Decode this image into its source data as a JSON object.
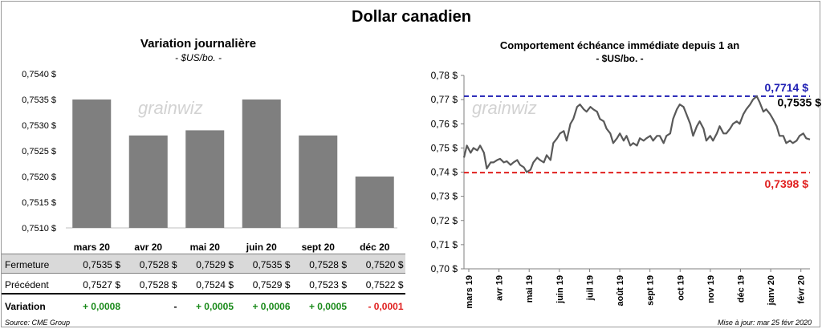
{
  "title": "Dollar canadien",
  "left": {
    "title": "Variation  journalière",
    "subtitle": "- $US/bo. -"
  },
  "right": {
    "title": "Comportement échéance immédiate depuis 1 an",
    "subtitle": "- $US/bo. -"
  },
  "watermark": "grainwiz",
  "table": {
    "row_labels": {
      "close": "Fermeture",
      "prev": "Précédent",
      "var": "Variation"
    },
    "close": [
      "0,7535  $",
      "0,7528  $",
      "0,7529  $",
      "0,7535  $",
      "0,7528  $",
      "0,7520  $"
    ],
    "prev": [
      "0,7527  $",
      "0,7528  $",
      "0,7524  $",
      "0,7529  $",
      "0,7523  $",
      "0,7522  $"
    ],
    "var": [
      "+ 0,0008",
      "-",
      "+ 0,0005",
      "+ 0,0006",
      "+ 0,0005",
      "- 0,0001"
    ],
    "var_sign": [
      "pos",
      "neu",
      "pos",
      "pos",
      "pos",
      "neg"
    ]
  },
  "footer": {
    "source": "Source: CME Group",
    "updated": "Mise à jour: mar 25 févr 2020"
  },
  "colors": {
    "bar": "#7f7f7f",
    "line": "#595959",
    "high": "#1f1fb4",
    "low": "#e0201f",
    "positive": "#1a8a1a",
    "negative": "#e0201f"
  },
  "chart_data": [
    {
      "type": "bar",
      "title": "Variation  journalière",
      "subtitle": "- $US/bo. -",
      "categories": [
        "mars 20",
        "avr 20",
        "mai 20",
        "juin 20",
        "sept 20",
        "déc 20"
      ],
      "values": [
        0.7535,
        0.7528,
        0.7529,
        0.7535,
        0.7528,
        0.752
      ],
      "ylim": [
        0.751,
        0.754
      ],
      "yticks": [
        "0,7510 $",
        "0,7515 $",
        "0,7520 $",
        "0,7525 $",
        "0,7530 $",
        "0,7535 $",
        "0,7540 $"
      ],
      "grid": false
    },
    {
      "type": "line",
      "title": "Comportement échéance immédiate depuis 1 an",
      "subtitle": "- $US/bo. -",
      "x_tick_labels": [
        "mars 19",
        "avr 19",
        "mai 19",
        "juin 19",
        "juil 19",
        "août 19",
        "sept 19",
        "oct 19",
        "nov 19",
        "déc 19",
        "janv 20",
        "févr 20"
      ],
      "ylim": [
        0.7,
        0.78
      ],
      "yticks": [
        "0,70 $",
        "0,71 $",
        "0,72 $",
        "0,73 $",
        "0,74 $",
        "0,75 $",
        "0,76 $",
        "0,77 $",
        "0,78 $"
      ],
      "series": [
        {
          "x": [
            "2019-02-26",
            "2019-03-01",
            "2019-03-05",
            "2019-03-08",
            "2019-03-12",
            "2019-03-15",
            "2019-03-19",
            "2019-03-22",
            "2019-03-26",
            "2019-03-29",
            "2019-04-02",
            "2019-04-05",
            "2019-04-09",
            "2019-04-12",
            "2019-04-16",
            "2019-04-19",
            "2019-04-23",
            "2019-04-26",
            "2019-04-30",
            "2019-05-03",
            "2019-05-07",
            "2019-05-10",
            "2019-05-14",
            "2019-05-17",
            "2019-05-21",
            "2019-05-24",
            "2019-05-28",
            "2019-05-31",
            "2019-06-04",
            "2019-06-07",
            "2019-06-11",
            "2019-06-14",
            "2019-06-18",
            "2019-06-21",
            "2019-06-25",
            "2019-06-28",
            "2019-07-02",
            "2019-07-05",
            "2019-07-09",
            "2019-07-12",
            "2019-07-16",
            "2019-07-19",
            "2019-07-23",
            "2019-07-26",
            "2019-07-30",
            "2019-08-02",
            "2019-08-06",
            "2019-08-09",
            "2019-08-13",
            "2019-08-16",
            "2019-08-20",
            "2019-08-23",
            "2019-08-27",
            "2019-08-30",
            "2019-09-03",
            "2019-09-06",
            "2019-09-10",
            "2019-09-13",
            "2019-09-17",
            "2019-09-20",
            "2019-09-24",
            "2019-09-27",
            "2019-10-01",
            "2019-10-04",
            "2019-10-08",
            "2019-10-11",
            "2019-10-15",
            "2019-10-18",
            "2019-10-22",
            "2019-10-25",
            "2019-10-29",
            "2019-11-01",
            "2019-11-05",
            "2019-11-08",
            "2019-11-12",
            "2019-11-15",
            "2019-11-19",
            "2019-11-22",
            "2019-11-26",
            "2019-11-29",
            "2019-12-03",
            "2019-12-06",
            "2019-12-10",
            "2019-12-13",
            "2019-12-17",
            "2019-12-20",
            "2019-12-24",
            "2019-12-27",
            "2019-12-31",
            "2020-01-03",
            "2020-01-07",
            "2020-01-10",
            "2020-01-14",
            "2020-01-17",
            "2020-01-21",
            "2020-01-24",
            "2020-01-28",
            "2020-01-31",
            "2020-02-04",
            "2020-02-07",
            "2020-02-11",
            "2020-02-14",
            "2020-02-18",
            "2020-02-21",
            "2020-02-25"
          ],
          "y": [
            0.746,
            0.751,
            0.748,
            0.75,
            0.749,
            0.751,
            0.748,
            0.7415,
            0.744,
            0.744,
            0.745,
            0.7455,
            0.744,
            0.7445,
            0.743,
            0.744,
            0.745,
            0.743,
            0.742,
            0.74,
            0.741,
            0.744,
            0.746,
            0.745,
            0.744,
            0.747,
            0.745,
            0.752,
            0.754,
            0.756,
            0.757,
            0.753,
            0.76,
            0.762,
            0.767,
            0.768,
            0.766,
            0.765,
            0.767,
            0.766,
            0.765,
            0.762,
            0.761,
            0.758,
            0.756,
            0.752,
            0.754,
            0.756,
            0.753,
            0.755,
            0.751,
            0.752,
            0.751,
            0.754,
            0.753,
            0.754,
            0.755,
            0.753,
            0.755,
            0.755,
            0.752,
            0.755,
            0.756,
            0.762,
            0.766,
            0.768,
            0.767,
            0.764,
            0.76,
            0.755,
            0.759,
            0.761,
            0.758,
            0.753,
            0.755,
            0.753,
            0.756,
            0.759,
            0.756,
            0.756,
            0.758,
            0.76,
            0.761,
            0.76,
            0.764,
            0.766,
            0.768,
            0.77,
            0.7714,
            0.769,
            0.765,
            0.766,
            0.764,
            0.762,
            0.759,
            0.755,
            0.755,
            0.752,
            0.753,
            0.752,
            0.753,
            0.755,
            0.756,
            0.754,
            0.7535
          ],
          "y_display": [
            "0,7535 $"
          ]
        }
      ],
      "reference_lines": [
        {
          "label": "0,7714 $",
          "value": 0.7714,
          "style": "dashed",
          "color": "#1f1fb4"
        },
        {
          "label": "0,7398 $",
          "value": 0.7398,
          "style": "dashed",
          "color": "#e0201f"
        }
      ],
      "last_value_label": "0,7535 $",
      "grid": false
    }
  ]
}
